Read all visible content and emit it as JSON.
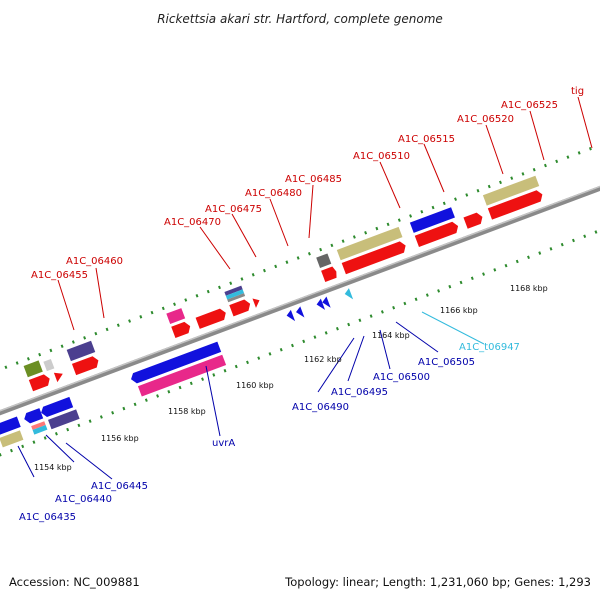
{
  "title": "Rickettsia akari str. Hartford, complete genome",
  "footer": {
    "accession": "Accession: NC_009881",
    "summary": "Topology: linear; Length: 1,231,060 bp; Genes: 1,293"
  },
  "colors": {
    "backbone": "#8a8a8a",
    "dots": "#2e8b2e",
    "top_label": "#cc0000",
    "bottom_label": "#0000aa",
    "rna_label": "#33bbdd"
  },
  "ticks": [
    "1154 kbp",
    "1156 kbp",
    "1158 kbp",
    "1160 kbp",
    "1162 kbp",
    "1164 kbp",
    "1166 kbp",
    "1168 kbp"
  ],
  "top_labels": [
    "A1C_06455",
    "A1C_06460",
    "A1C_06470",
    "A1C_06475",
    "A1C_06480",
    "A1C_06485",
    "A1C_06510",
    "A1C_06515",
    "A1C_06520",
    "A1C_06525",
    "tig"
  ],
  "bottom_labels": [
    "A1C_06435",
    "A1C_06440",
    "A1C_06445",
    "uvrA",
    "A1C_06490",
    "A1C_06495",
    "A1C_06500",
    "A1C_06505",
    "A1C_t06947"
  ]
}
